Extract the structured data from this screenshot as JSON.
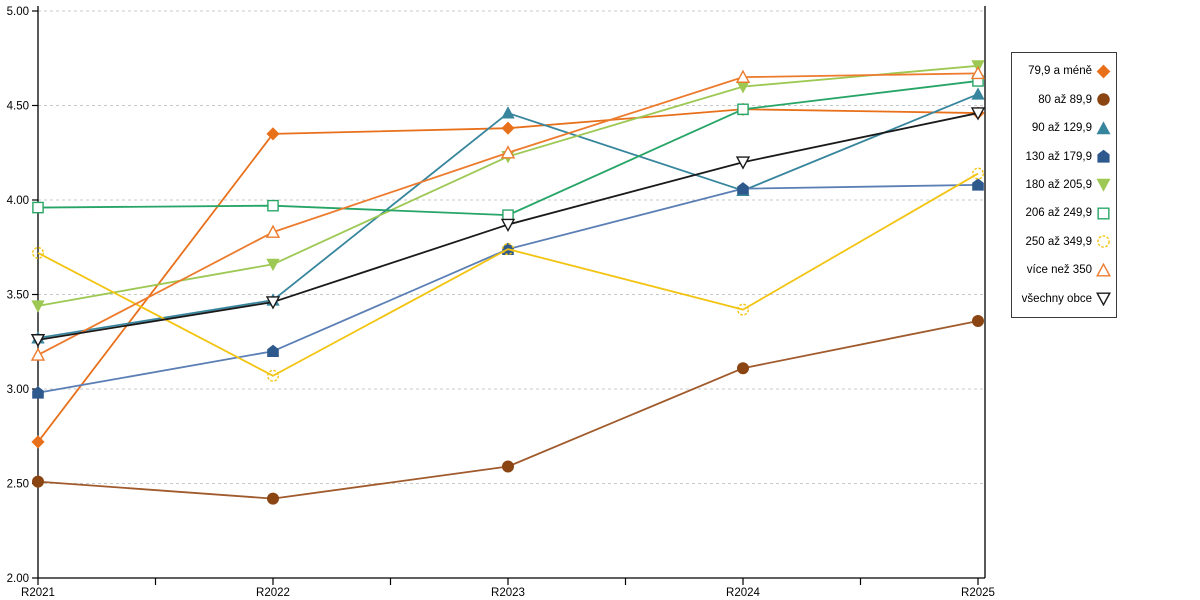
{
  "chart_data": {
    "type": "line",
    "title": "",
    "xlabel": "",
    "ylabel": "",
    "categories": [
      "R2021",
      "R2022",
      "R2023",
      "R2024",
      "R2025"
    ],
    "series": [
      {
        "name": "79,9 a méně",
        "values": [
          2.72,
          4.35,
          4.38,
          4.48,
          4.46
        ],
        "color": "#E8701A",
        "marker_color": "#E8701A",
        "marker": "diamond",
        "filled": true
      },
      {
        "name": "80 až 89,9",
        "values": [
          2.51,
          2.42,
          2.59,
          3.11,
          3.36
        ],
        "color": "#A05A2C",
        "marker_color": "#8B4513",
        "marker": "circle",
        "filled": true
      },
      {
        "name": "90 až 129,9",
        "values": [
          3.27,
          3.47,
          4.46,
          4.05,
          4.56
        ],
        "color": "#38869E",
        "marker_color": "#38869E",
        "marker": "triangle",
        "filled": true
      },
      {
        "name": "130 až 179,9",
        "values": [
          2.98,
          3.2,
          3.74,
          4.06,
          4.08
        ],
        "color": "#5B7FB5",
        "marker_color": "#2E598C",
        "marker": "pentagon",
        "filled": true
      },
      {
        "name": "180 až 205,9",
        "values": [
          3.44,
          3.66,
          4.23,
          4.6,
          4.71
        ],
        "color": "#9DC853",
        "marker_color": "#9DC853",
        "marker": "triangle-down",
        "filled": true
      },
      {
        "name": "206 až 249,9",
        "values": [
          3.96,
          3.97,
          3.92,
          4.48,
          4.63
        ],
        "color": "#27A567",
        "marker_color": "#27A567",
        "marker": "square",
        "filled": false
      },
      {
        "name": "250 až 349,9",
        "values": [
          3.72,
          3.07,
          3.74,
          3.42,
          4.14
        ],
        "color": "#F2C411",
        "marker_color": "#F2C411",
        "marker": "circle-dashed",
        "filled": false
      },
      {
        "name": "více než 350",
        "values": [
          3.18,
          3.83,
          4.25,
          4.65,
          4.67
        ],
        "color": "#EC7B2E",
        "marker_color": "#EC7B2E",
        "marker": "triangle",
        "filled": false
      },
      {
        "name": "všechny obce",
        "values": [
          3.26,
          3.46,
          3.87,
          4.2,
          4.46
        ],
        "color": "#1A1A1A",
        "marker_color": "#1A1A1A",
        "marker": "triangle-down",
        "filled": false
      }
    ],
    "ylim": [
      2.0,
      5.0
    ],
    "ytick_labels": [
      "5.00",
      "4.50",
      "4.00",
      "3.50",
      "3.00",
      "2.50",
      "2.00"
    ],
    "ytick_values": [
      5.0,
      4.5,
      4.0,
      3.5,
      3.0,
      2.5,
      2.0
    ],
    "grid": "horizontal-dashed",
    "grid_color": "#C8C8C8",
    "axis_color": "#000000",
    "legend_position": "right"
  }
}
